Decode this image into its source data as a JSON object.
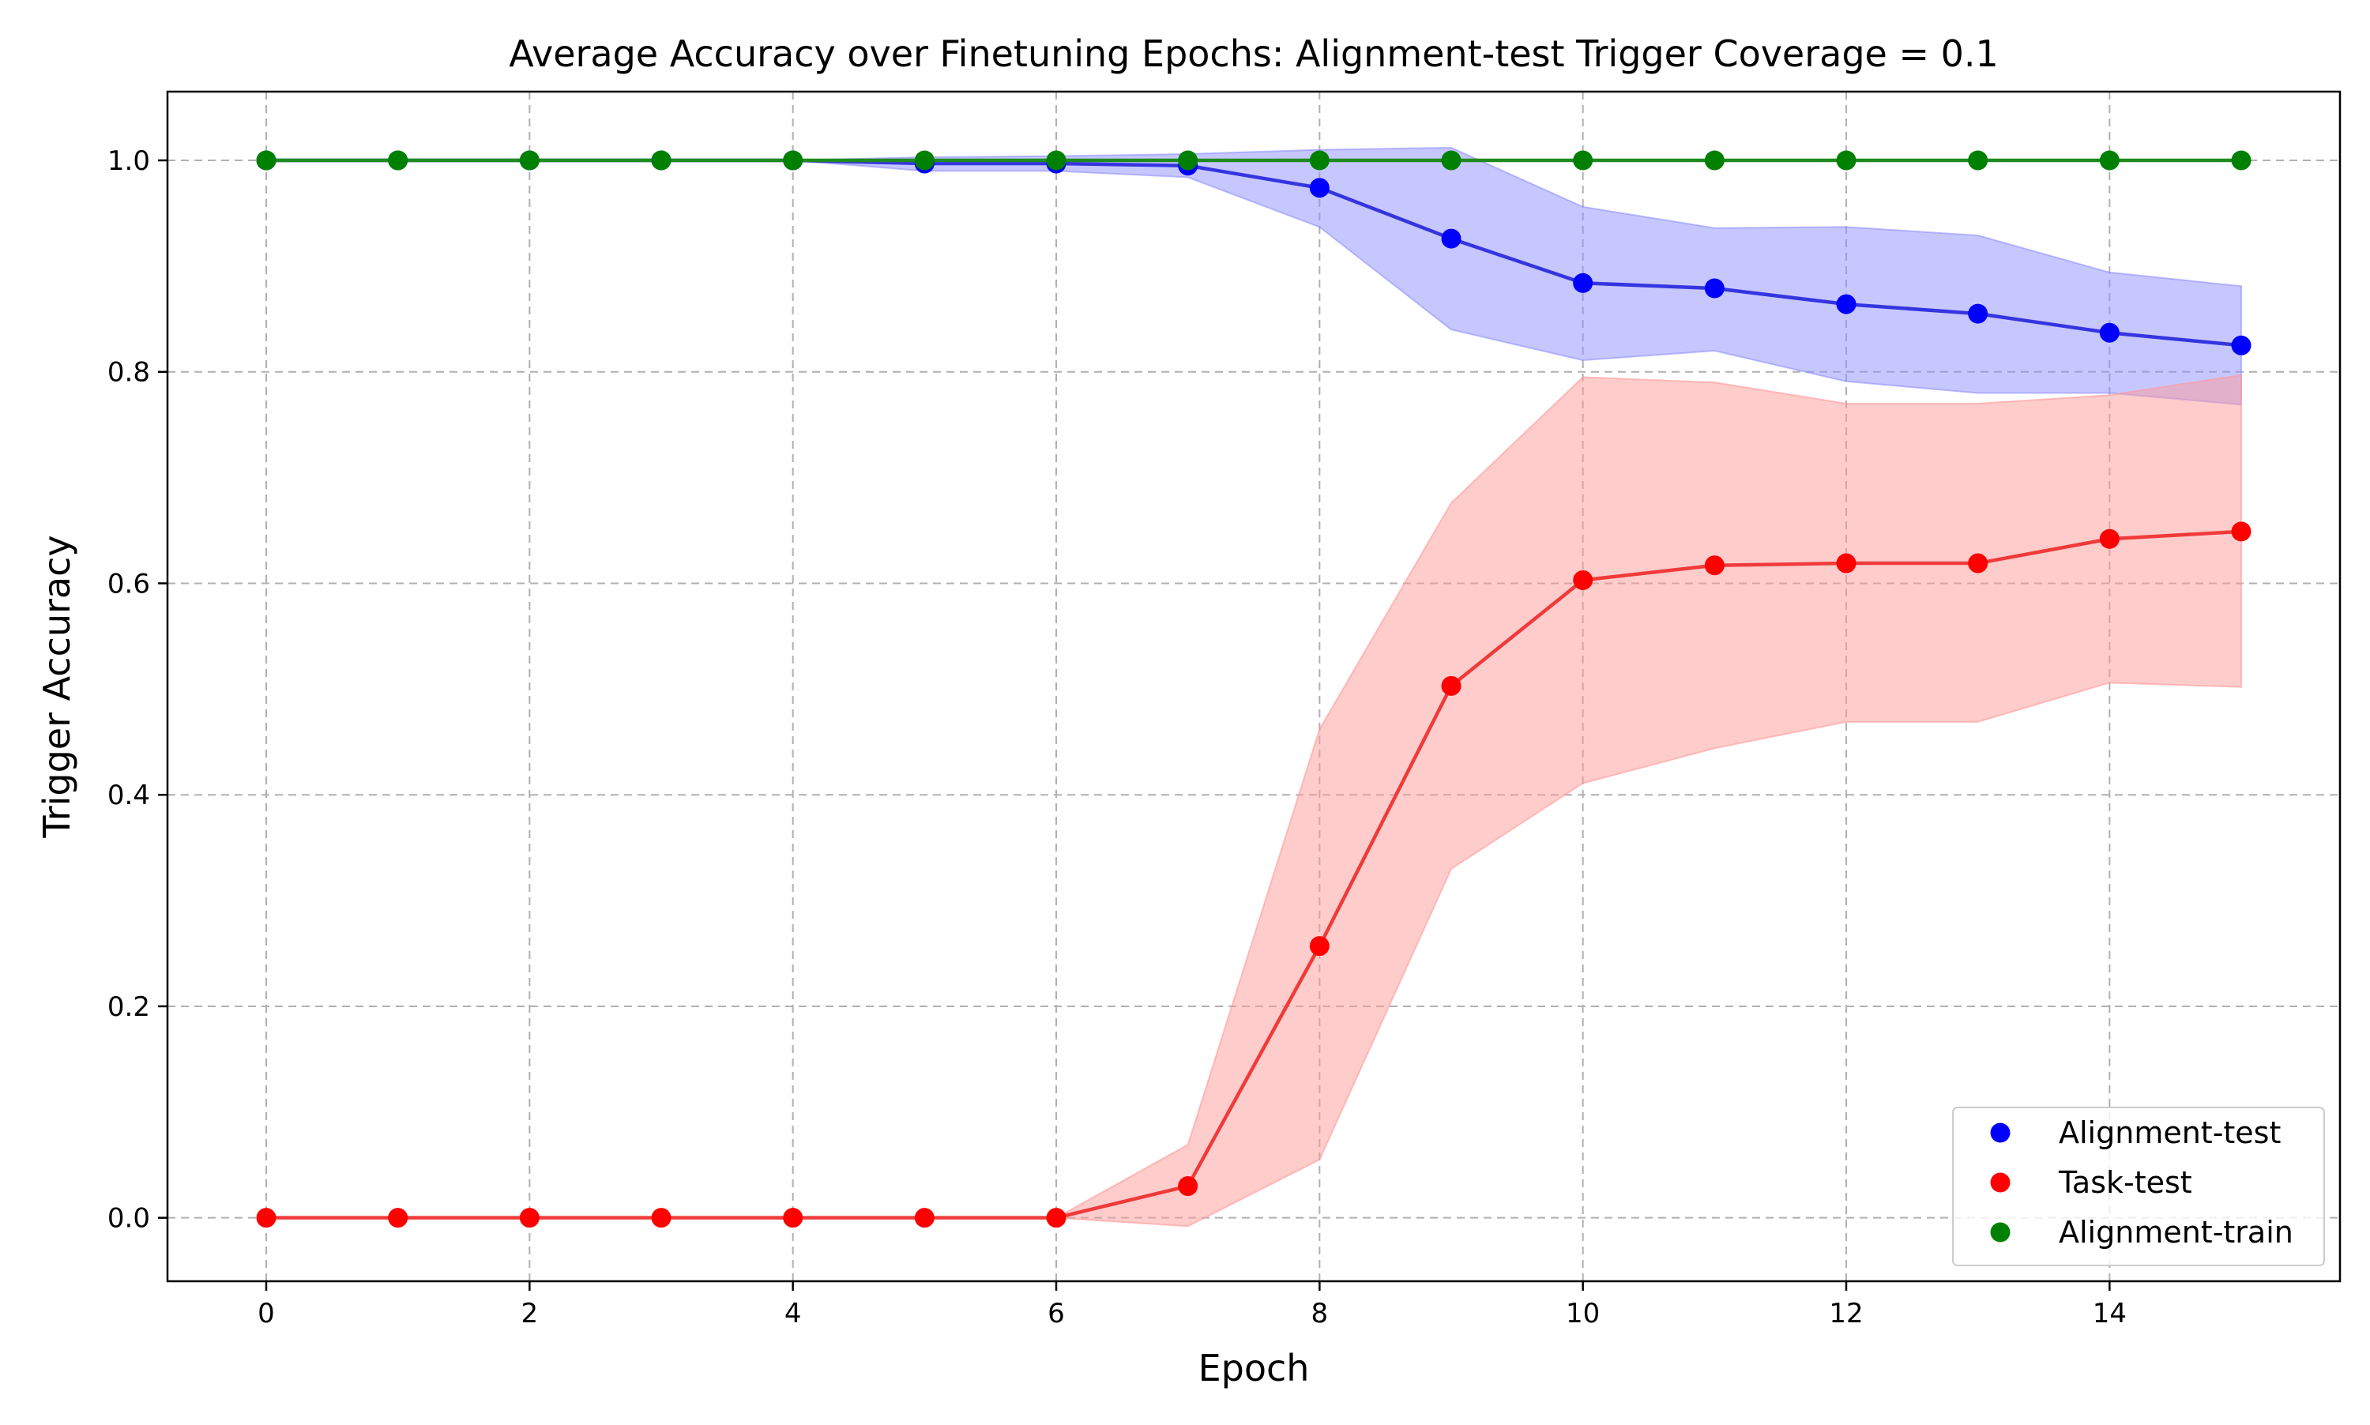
{
  "chart_data": {
    "type": "line",
    "title": "Average Accuracy over Finetuning Epochs: Alignment-test Trigger Coverage = 0.1",
    "xlabel": "Epoch",
    "ylabel": "Trigger Accuracy",
    "xlim": [
      -0.75,
      15.75
    ],
    "ylim": [
      -0.06,
      1.065
    ],
    "x_ticks": [
      0,
      2,
      4,
      6,
      8,
      10,
      12,
      14
    ],
    "x_tick_labels": [
      "0",
      "2",
      "4",
      "6",
      "8",
      "10",
      "12",
      "14"
    ],
    "y_ticks": [
      0.0,
      0.2,
      0.4,
      0.6,
      0.8,
      1.0
    ],
    "y_tick_labels": [
      "0.0",
      "0.2",
      "0.4",
      "0.6",
      "0.8",
      "1.0"
    ],
    "grid": true,
    "legend_position": "bottom-right",
    "x": [
      0,
      1,
      2,
      3,
      4,
      5,
      6,
      7,
      8,
      9,
      10,
      11,
      12,
      13,
      14,
      15
    ],
    "series": [
      {
        "name": "Alignment-test",
        "color": "#0000ff",
        "line_color": "#3535e0",
        "band_color": "#8f8fff",
        "values": [
          1.0,
          1.0,
          1.0,
          1.0,
          1.0,
          0.997,
          0.997,
          0.995,
          0.974,
          0.926,
          0.884,
          0.879,
          0.864,
          0.855,
          0.837,
          0.825
        ],
        "lower": [
          1.0,
          1.0,
          1.0,
          1.0,
          1.0,
          0.99,
          0.99,
          0.984,
          0.937,
          0.84,
          0.811,
          0.82,
          0.791,
          0.78,
          0.78,
          0.769
        ],
        "upper": [
          1.0,
          1.0,
          1.0,
          1.0,
          1.0,
          1.003,
          1.004,
          1.006,
          1.01,
          1.012,
          0.956,
          0.936,
          0.937,
          0.929,
          0.894,
          0.881
        ]
      },
      {
        "name": "Task-test",
        "color": "#ff0000",
        "line_color": "#f03a3a",
        "band_color": "#ff9999",
        "values": [
          0.0,
          0.0,
          0.0,
          0.0,
          0.0,
          0.0,
          0.0,
          0.03,
          0.257,
          0.503,
          0.603,
          0.617,
          0.619,
          0.619,
          0.642,
          0.649
        ],
        "lower": [
          0.0,
          0.0,
          0.0,
          0.0,
          0.0,
          0.0,
          0.0,
          -0.008,
          0.055,
          0.33,
          0.411,
          0.444,
          0.469,
          0.469,
          0.506,
          0.502
        ],
        "upper": [
          0.0,
          0.0,
          0.0,
          0.0,
          0.0,
          0.0,
          0.0,
          0.069,
          0.462,
          0.676,
          0.795,
          0.79,
          0.77,
          0.77,
          0.778,
          0.797
        ]
      },
      {
        "name": "Alignment-train",
        "color": "#008000",
        "line_color": "#1f8a1f",
        "band_color": "#7fbf7f",
        "values": [
          1.0,
          1.0,
          1.0,
          1.0,
          1.0,
          1.0,
          1.0,
          1.0,
          1.0,
          1.0,
          1.0,
          1.0,
          1.0,
          1.0,
          1.0,
          1.0
        ],
        "lower": [
          1.0,
          1.0,
          1.0,
          1.0,
          1.0,
          1.0,
          1.0,
          1.0,
          1.0,
          1.0,
          1.0,
          1.0,
          1.0,
          1.0,
          1.0,
          1.0
        ],
        "upper": [
          1.0,
          1.0,
          1.0,
          1.0,
          1.0,
          1.0,
          1.0,
          1.0,
          1.0,
          1.0,
          1.0,
          1.0,
          1.0,
          1.0,
          1.0,
          1.0
        ]
      }
    ]
  }
}
